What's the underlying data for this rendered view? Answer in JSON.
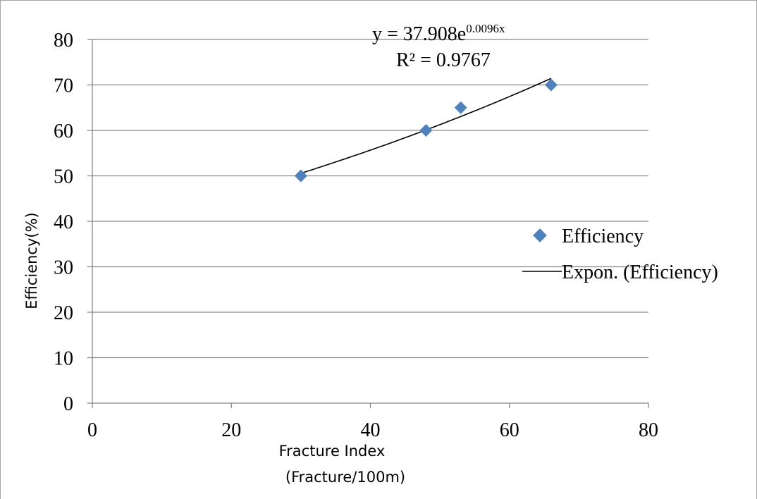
{
  "chart_data": {
    "type": "scatter",
    "xlabel": [
      "Fracture Index",
      "(Fracture/100m)"
    ],
    "ylabel": "Efficiency(%)",
    "xlim": [
      0,
      80
    ],
    "ylim": [
      0,
      80
    ],
    "x_ticks": [
      "0",
      "20",
      "40",
      "60",
      "80"
    ],
    "y_ticks": [
      "0",
      "10",
      "20",
      "30",
      "40",
      "50",
      "60",
      "70",
      "80"
    ],
    "grid": "horizontal major gridlines",
    "legend_placement": "right",
    "series": [
      {
        "name": "Efficiency",
        "marker": "diamond",
        "color": "#4F81BD",
        "x": [
          30,
          48,
          53,
          66
        ],
        "y": [
          50,
          60,
          65,
          70
        ]
      }
    ],
    "trendline": {
      "name": "Expon. (Efficiency)",
      "type": "exponential",
      "a": 37.908,
      "b": 0.0096,
      "x_range": [
        30,
        66
      ],
      "color": "#000000",
      "equation_prefix": "y = 37.908e",
      "equation_exponent": "0.0096x",
      "r_squared": "R² = 0.9767"
    }
  }
}
